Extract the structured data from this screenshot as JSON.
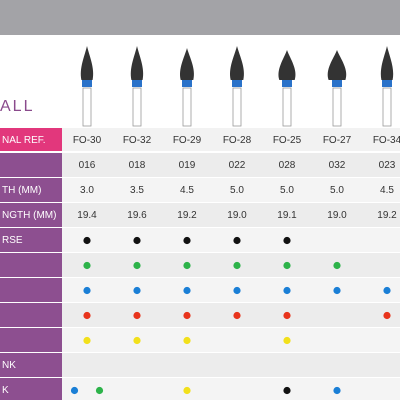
{
  "header": {
    "title": "ALL"
  },
  "table": {
    "ref_label": "NAL REF.",
    "columns": [
      "FO-30",
      "FO-32",
      "FO-29",
      "FO-28",
      "FO-25",
      "FO-27",
      "FO-34"
    ],
    "text_rows": [
      {
        "label": null,
        "cells": [
          "016",
          "018",
          "019",
          "022",
          "028",
          "032",
          "023"
        ]
      },
      {
        "label": "TH (MM)",
        "cells": [
          "3.0",
          "3.5",
          "4.5",
          "5.0",
          "5.0",
          "5.0",
          "4.5"
        ]
      },
      {
        "label": "NGTH (MM)",
        "cells": [
          "19.4",
          "19.6",
          "19.2",
          "19.0",
          "19.1",
          "19.0",
          "19.2"
        ]
      }
    ],
    "dot_rows": [
      {
        "label": "RSE",
        "cells": [
          [
            "#111111"
          ],
          [
            "#111111"
          ],
          [
            "#111111"
          ],
          [
            "#111111"
          ],
          [
            "#111111"
          ],
          [],
          []
        ]
      },
      {
        "label": null,
        "cells": [
          [
            "#2db34a"
          ],
          [
            "#2db34a"
          ],
          [
            "#2db34a"
          ],
          [
            "#2db34a"
          ],
          [
            "#2db34a"
          ],
          [
            "#2db34a"
          ],
          []
        ]
      },
      {
        "label": null,
        "cells": [
          [
            "#1a7fd6"
          ],
          [
            "#1a7fd6"
          ],
          [
            "#1a7fd6"
          ],
          [
            "#1a7fd6"
          ],
          [
            "#1a7fd6"
          ],
          [
            "#1a7fd6"
          ],
          [
            "#1a7fd6"
          ]
        ]
      },
      {
        "label": null,
        "cells": [
          [
            "#e8341c"
          ],
          [
            "#e8341c"
          ],
          [
            "#e8341c"
          ],
          [
            "#e8341c"
          ],
          [
            "#e8341c"
          ],
          [],
          [
            "#e8341c"
          ]
        ]
      },
      {
        "label": null,
        "cells": [
          [
            "#f2e01a"
          ],
          [
            "#f2e01a"
          ],
          [
            "#f2e01a"
          ],
          [],
          [
            "#f2e01a"
          ],
          [],
          []
        ]
      },
      {
        "label": "NK",
        "cells": [
          [],
          [],
          [],
          [],
          [],
          [],
          []
        ]
      },
      {
        "label": "K",
        "cells": [
          [
            "#1a7fd6",
            "#2db34a"
          ],
          [],
          [
            "#f2e01a"
          ],
          [],
          [
            "#111111"
          ],
          [
            "#1a7fd6"
          ],
          []
        ]
      }
    ]
  }
}
